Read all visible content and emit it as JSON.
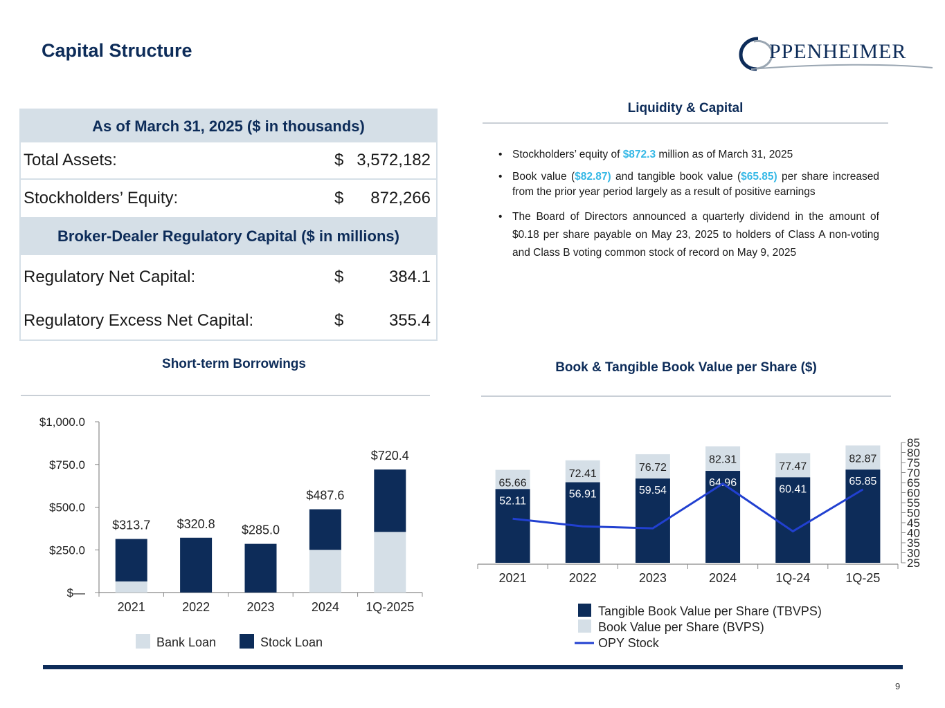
{
  "page": {
    "title": "Capital Structure",
    "logo_text": "PPENHEIMER",
    "page_number": "9"
  },
  "table": {
    "header1": "As of March 31, 2025 ($ in thousands)",
    "rows1": [
      {
        "label": "Total Assets:",
        "currency": "$",
        "value": "3,572,182"
      },
      {
        "label": "Stockholders’ Equity:",
        "currency": "$",
        "value": "872,266"
      }
    ],
    "header2": "Broker-Dealer Regulatory Capital ($ in millions)",
    "rows2": [
      {
        "label": "Regulatory Net Capital:",
        "currency": "$",
        "value": "384.1"
      },
      {
        "label": "Regulatory Excess Net Capital:",
        "currency": "$",
        "value": "355.4"
      }
    ]
  },
  "liquidity": {
    "title": "Liquidity & Capital",
    "b1": {
      "pre": "Stockholders’ equity of ",
      "hl": "$872.3",
      "post": " million as of March 31, 2025"
    },
    "b2": {
      "pre": "Book value (",
      "hl1": "$82.87)",
      "mid": " and tangible book value (",
      "hl2": "$65.85)",
      "post": " per share increased from the prior year period largely as a result of positive earnings"
    },
    "b3": "The Board of Directors announced a quarterly dividend in the amount of $0.18 per share payable on May 23, 2025 to holders of Class A non-voting and Class B voting common stock of record on May 9, 2025"
  },
  "colors": {
    "navy": "#0d2c59",
    "light": "#d5dfe7",
    "highlight": "#35b8e6",
    "line": "#2140d0"
  },
  "chart_data": [
    {
      "type": "bar",
      "stacked": true,
      "title": "Short-term Borrowings",
      "categories": [
        "2021",
        "2022",
        "2023",
        "2024",
        "1Q-2025"
      ],
      "series": [
        {
          "name": "Bank Loan",
          "values": [
            65,
            0,
            0,
            250,
            355
          ]
        },
        {
          "name": "Stock Loan",
          "values": [
            248.7,
            320.8,
            285.0,
            237.6,
            365.4
          ]
        }
      ],
      "totals": [
        "$313.7",
        "$320.8",
        "$285.0",
        "$487.6",
        "$720.4"
      ],
      "ylim": [
        0,
        1000
      ],
      "yticks": [
        0,
        250,
        500,
        750,
        1000
      ],
      "ytick_labels": [
        "$—",
        "$250.0",
        "$500.0",
        "$750.0",
        "$1,000.0"
      ],
      "legend": [
        "Bank Loan",
        "Stock Loan"
      ]
    },
    {
      "type": "bar",
      "title": "Book & Tangible Book Value per Share ($)",
      "categories": [
        "2021",
        "2022",
        "2023",
        "2024",
        "1Q-24",
        "1Q-25"
      ],
      "series": [
        {
          "name": "Tangible Book Value per Share (TBVPS)",
          "values": [
            52.11,
            56.91,
            59.54,
            64.96,
            60.41,
            65.85
          ]
        },
        {
          "name": "Book Value per Share (BVPS)",
          "values": [
            65.66,
            72.41,
            76.72,
            82.31,
            77.47,
            82.87
          ]
        },
        {
          "name": "OPY Stock",
          "type": "line",
          "values": [
            47.0,
            43.2,
            42.2,
            64.5,
            40.7,
            61.6
          ]
        }
      ],
      "bar_ylim": [
        0,
        85
      ],
      "right_axis": {
        "ylim": [
          25,
          85
        ],
        "ticks": [
          25,
          30,
          35,
          40,
          45,
          50,
          55,
          60,
          65,
          70,
          75,
          80,
          85
        ]
      },
      "legend": [
        "Tangible Book Value per Share (TBVPS)",
        "Book Value per Share (BVPS)",
        "OPY Stock"
      ]
    }
  ]
}
